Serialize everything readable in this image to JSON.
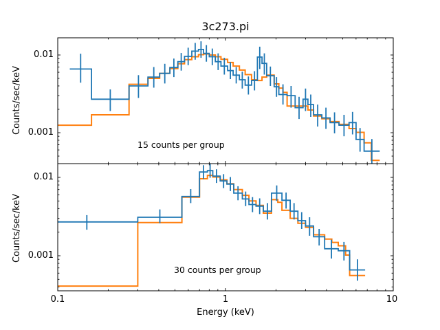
{
  "chart": {
    "title": "3c273.pi",
    "xlabel": "Energy (keV)",
    "ylabel": "Counts/sec/keV",
    "x_tick_labels": [
      "0.1",
      "1",
      "10"
    ],
    "y_tick_labels": [
      "0.01",
      "0.001"
    ]
  },
  "chart_data": {
    "type": "line",
    "subtype": "step-histogram-with-errorbars",
    "title": "3c273.pi",
    "xlabel": "Energy (keV)",
    "ylabel": "Counts/sec/keV",
    "scale": "log-log",
    "grid": false,
    "legend": "none",
    "xlim": [
      0.1,
      10
    ],
    "x_major_ticks": [
      0.1,
      1,
      10
    ],
    "y_major_ticks": [
      0.01,
      0.001
    ],
    "colors": {
      "data": "#1f77b4",
      "model": "#ff7f0e",
      "axis": "#000000"
    },
    "bin_format": [
      "e_lo_keV",
      "e_hi_keV",
      "counts_sec_keV",
      "err_lo",
      "err_hi",
      "optional_err_x"
    ],
    "panels": [
      {
        "annotation": "15 counts per group",
        "ylim": [
          0.0004,
          0.01664
        ],
        "data_bins": [
          [
            0.118,
            0.159,
            0.0066,
            0.0044,
            0.0104
          ],
          [
            0.159,
            0.266,
            0.0027,
            0.0019,
            0.0036
          ],
          [
            0.266,
            0.345,
            0.004,
            0.0028,
            0.0055
          ],
          [
            0.345,
            0.405,
            0.0052,
            0.0038,
            0.007
          ],
          [
            0.405,
            0.466,
            0.0058,
            0.0043,
            0.0077
          ],
          [
            0.466,
            0.52,
            0.0069,
            0.0052,
            0.009
          ],
          [
            0.52,
            0.57,
            0.0082,
            0.0063,
            0.0106
          ],
          [
            0.57,
            0.63,
            0.0096,
            0.0074,
            0.0124
          ],
          [
            0.63,
            0.69,
            0.0112,
            0.0087,
            0.0143
          ],
          [
            0.69,
            0.74,
            0.0118,
            0.0092,
            0.015
          ],
          [
            0.74,
            0.8,
            0.0105,
            0.0082,
            0.0134
          ],
          [
            0.8,
            0.87,
            0.0095,
            0.0074,
            0.0121
          ],
          [
            0.87,
            0.94,
            0.0082,
            0.0064,
            0.0105
          ],
          [
            0.94,
            1.03,
            0.0072,
            0.0056,
            0.0092
          ],
          [
            1.03,
            1.11,
            0.0063,
            0.0049,
            0.0081
          ],
          [
            1.11,
            1.21,
            0.0055,
            0.0043,
            0.007
          ],
          [
            1.21,
            1.31,
            0.0048,
            0.0037,
            0.0061
          ],
          [
            1.31,
            1.43,
            0.0041,
            0.0031,
            0.0053
          ],
          [
            1.43,
            1.55,
            0.0047,
            0.0035,
            0.0062
          ],
          [
            1.55,
            1.65,
            0.0094,
            0.0066,
            0.0128
          ],
          [
            1.65,
            1.76,
            0.0078,
            0.0056,
            0.0105
          ],
          [
            1.76,
            1.95,
            0.0054,
            0.004,
            0.0071
          ],
          [
            1.95,
            2.08,
            0.0039,
            0.0029,
            0.0052
          ],
          [
            2.08,
            2.33,
            0.0031,
            0.0023,
            0.0042
          ],
          [
            2.33,
            2.6,
            0.003,
            0.0021,
            0.004
          ],
          [
            2.6,
            2.9,
            0.0021,
            0.0015,
            0.0029
          ],
          [
            2.9,
            3.1,
            0.0027,
            0.0019,
            0.0037
          ],
          [
            3.1,
            3.35,
            0.0023,
            0.0016,
            0.0031
          ],
          [
            3.35,
            3.75,
            0.0017,
            0.0012,
            0.0023
          ],
          [
            3.75,
            4.2,
            0.00155,
            0.00112,
            0.0021
          ],
          [
            4.2,
            4.75,
            0.00135,
            0.00098,
            0.00183
          ],
          [
            4.75,
            5.45,
            0.00125,
            0.0009,
            0.0017
          ],
          [
            5.45,
            6.0,
            0.00135,
            0.00095,
            0.00185
          ],
          [
            6.0,
            6.7,
            0.00082,
            0.00057,
            0.00115
          ],
          [
            6.7,
            8.3,
            0.00058,
            0.0004,
            0.00083
          ]
        ],
        "model_bins": [
          [
            0.1,
            0.159,
            0.00125
          ],
          [
            0.159,
            0.266,
            0.0017
          ],
          [
            0.266,
            0.345,
            0.0042
          ],
          [
            0.345,
            0.405,
            0.005
          ],
          [
            0.405,
            0.466,
            0.0058
          ],
          [
            0.466,
            0.52,
            0.0067
          ],
          [
            0.52,
            0.57,
            0.0077
          ],
          [
            0.57,
            0.63,
            0.0087
          ],
          [
            0.63,
            0.69,
            0.0095
          ],
          [
            0.69,
            0.74,
            0.0101
          ],
          [
            0.74,
            0.8,
            0.0103
          ],
          [
            0.8,
            0.87,
            0.01
          ],
          [
            0.87,
            0.94,
            0.0095
          ],
          [
            0.94,
            1.03,
            0.0088
          ],
          [
            1.03,
            1.11,
            0.008
          ],
          [
            1.11,
            1.21,
            0.0072
          ],
          [
            1.21,
            1.31,
            0.0064
          ],
          [
            1.31,
            1.43,
            0.0056
          ],
          [
            1.43,
            1.55,
            0.0048
          ],
          [
            1.55,
            1.65,
            0.0047
          ],
          [
            1.65,
            1.76,
            0.0052
          ],
          [
            1.76,
            1.95,
            0.0055
          ],
          [
            1.95,
            2.08,
            0.00425
          ],
          [
            2.08,
            2.2,
            0.00375
          ],
          [
            2.2,
            2.33,
            0.0033
          ],
          [
            2.33,
            3.1,
            0.0022
          ],
          [
            3.1,
            3.35,
            0.00196
          ],
          [
            3.35,
            3.75,
            0.00164
          ],
          [
            3.75,
            4.2,
            0.00151
          ],
          [
            4.2,
            4.75,
            0.00139
          ],
          [
            4.75,
            5.45,
            0.00128
          ],
          [
            5.45,
            6.0,
            0.00113
          ],
          [
            6.0,
            6.7,
            0.00101
          ],
          [
            6.7,
            7.4,
            0.00074
          ],
          [
            7.4,
            8.3,
            0.00044
          ]
        ]
      },
      {
        "annotation": "30 counts per group",
        "ylim": [
          0.000357,
          0.01498
        ],
        "data_bins": [
          [
            0.1,
            0.3,
            0.0027,
            0.00215,
            0.0033,
            0.149
          ],
          [
            0.3,
            0.55,
            0.0031,
            0.0026,
            0.0039
          ],
          [
            0.55,
            0.7,
            0.0057,
            0.0047,
            0.0071
          ],
          [
            0.7,
            0.78,
            0.0117,
            0.0095,
            0.0143
          ],
          [
            0.78,
            0.84,
            0.0122,
            0.0099,
            0.0149
          ],
          [
            0.84,
            0.93,
            0.0104,
            0.0085,
            0.0127
          ],
          [
            0.93,
            1.02,
            0.009,
            0.0073,
            0.011
          ],
          [
            1.02,
            1.12,
            0.0082,
            0.0067,
            0.0101
          ],
          [
            1.12,
            1.26,
            0.0063,
            0.0051,
            0.0077
          ],
          [
            1.26,
            1.38,
            0.0053,
            0.0043,
            0.0066
          ],
          [
            1.38,
            1.52,
            0.0045,
            0.0036,
            0.0056
          ],
          [
            1.52,
            1.68,
            0.0043,
            0.0034,
            0.0054
          ],
          [
            1.68,
            1.88,
            0.0037,
            0.0029,
            0.0047
          ],
          [
            1.88,
            2.17,
            0.0063,
            0.005,
            0.0079
          ],
          [
            2.17,
            2.43,
            0.0051,
            0.004,
            0.0064
          ],
          [
            2.43,
            2.7,
            0.0037,
            0.0029,
            0.0047
          ],
          [
            2.7,
            3.0,
            0.0028,
            0.0022,
            0.0036
          ],
          [
            3.0,
            3.35,
            0.0024,
            0.0018,
            0.0031
          ],
          [
            3.35,
            3.9,
            0.00175,
            0.00135,
            0.0022
          ],
          [
            3.9,
            4.7,
            0.00123,
            0.00092,
            0.0016
          ],
          [
            4.7,
            5.5,
            0.00116,
            0.00087,
            0.0015
          ],
          [
            5.5,
            6.8,
            0.00066,
            0.00048,
            0.0009
          ]
        ],
        "model_bins": [
          [
            0.1,
            0.3,
            0.00041
          ],
          [
            0.3,
            0.55,
            0.00265
          ],
          [
            0.55,
            0.7,
            0.0056
          ],
          [
            0.7,
            0.78,
            0.0096
          ],
          [
            0.78,
            0.84,
            0.0106
          ],
          [
            0.84,
            0.93,
            0.0101
          ],
          [
            0.93,
            1.02,
            0.0093
          ],
          [
            1.02,
            1.12,
            0.0083
          ],
          [
            1.12,
            1.26,
            0.007
          ],
          [
            1.26,
            1.38,
            0.0059
          ],
          [
            1.38,
            1.52,
            0.005
          ],
          [
            1.52,
            1.68,
            0.0044
          ],
          [
            1.68,
            1.88,
            0.0035
          ],
          [
            1.88,
            2.05,
            0.0052
          ],
          [
            2.05,
            2.17,
            0.0048
          ],
          [
            2.17,
            2.43,
            0.0038
          ],
          [
            2.43,
            2.7,
            0.003
          ],
          [
            2.7,
            3.0,
            0.0026
          ],
          [
            3.0,
            3.35,
            0.0023
          ],
          [
            3.35,
            3.9,
            0.00185
          ],
          [
            3.9,
            4.3,
            0.00163
          ],
          [
            4.3,
            4.7,
            0.00148
          ],
          [
            4.7,
            5.2,
            0.00134
          ],
          [
            5.2,
            5.5,
            0.00102
          ],
          [
            5.5,
            6.8,
            0.00056
          ]
        ]
      }
    ]
  }
}
